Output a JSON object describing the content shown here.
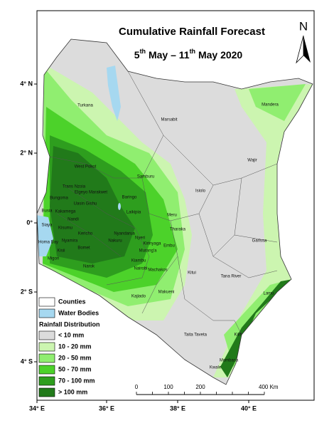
{
  "title": "Cumulative Rainfall Forecast",
  "date": {
    "start_day": "5",
    "start_suffix": "th",
    "middle": " May – 11",
    "end_suffix": "th",
    "end": " May 2020"
  },
  "north": "N",
  "latitude_labels": [
    "4° N",
    "2° N",
    "0°",
    "2° S",
    "4° S"
  ],
  "longitude_labels": [
    "34° E",
    "36° E",
    "38° E",
    "40° E"
  ],
  "legend": {
    "counties": "Counties",
    "water_bodies": "Water Bodies",
    "water_color": "#a6d8f0",
    "heading": "Rainfall Distribution",
    "classes": [
      {
        "label": "< 10 mm",
        "color": "#dcdcdc"
      },
      {
        "label": "10 - 20 mm",
        "color": "#ccf5b0"
      },
      {
        "label": "20 - 50 mm",
        "color": "#90ee70"
      },
      {
        "label": "50 - 70 mm",
        "color": "#4cd22a"
      },
      {
        "label": "70 - 100 mm",
        "color": "#2e9e1e"
      },
      {
        "label": "> 100 mm",
        "color": "#217a1a"
      }
    ]
  },
  "scale_bar": {
    "labels": [
      "0",
      "100",
      "200",
      "400 Km"
    ]
  },
  "counties": [
    "Turkana",
    "Marsabit",
    "Mandera",
    "Wajir",
    "Isiolo",
    "Samburu",
    "West Pokot",
    "Trans Nzoia",
    "Elgeyo Marakwet",
    "Baringo",
    "Bungoma",
    "Uasin Gishu",
    "Busia",
    "Kakamega",
    "Nandi",
    "Laikipia",
    "Meru",
    "Siaya",
    "Kisumu",
    "Kericho",
    "Homa Bay",
    "Nyamira",
    "Bomet",
    "Kisii",
    "Migori",
    "Nakuru",
    "Nyandarua",
    "Nyeri",
    "Kirinyaga",
    "Tharaka",
    "Embu",
    "Murang'a",
    "Kiambu",
    "Narok",
    "Nairobi",
    "Machakos",
    "Kitui",
    "Garissa",
    "Tana River",
    "Makueni",
    "Kajiado",
    "Lamu",
    "Taita Taveta",
    "Kilifi",
    "Mombasa",
    "Kwale"
  ]
}
